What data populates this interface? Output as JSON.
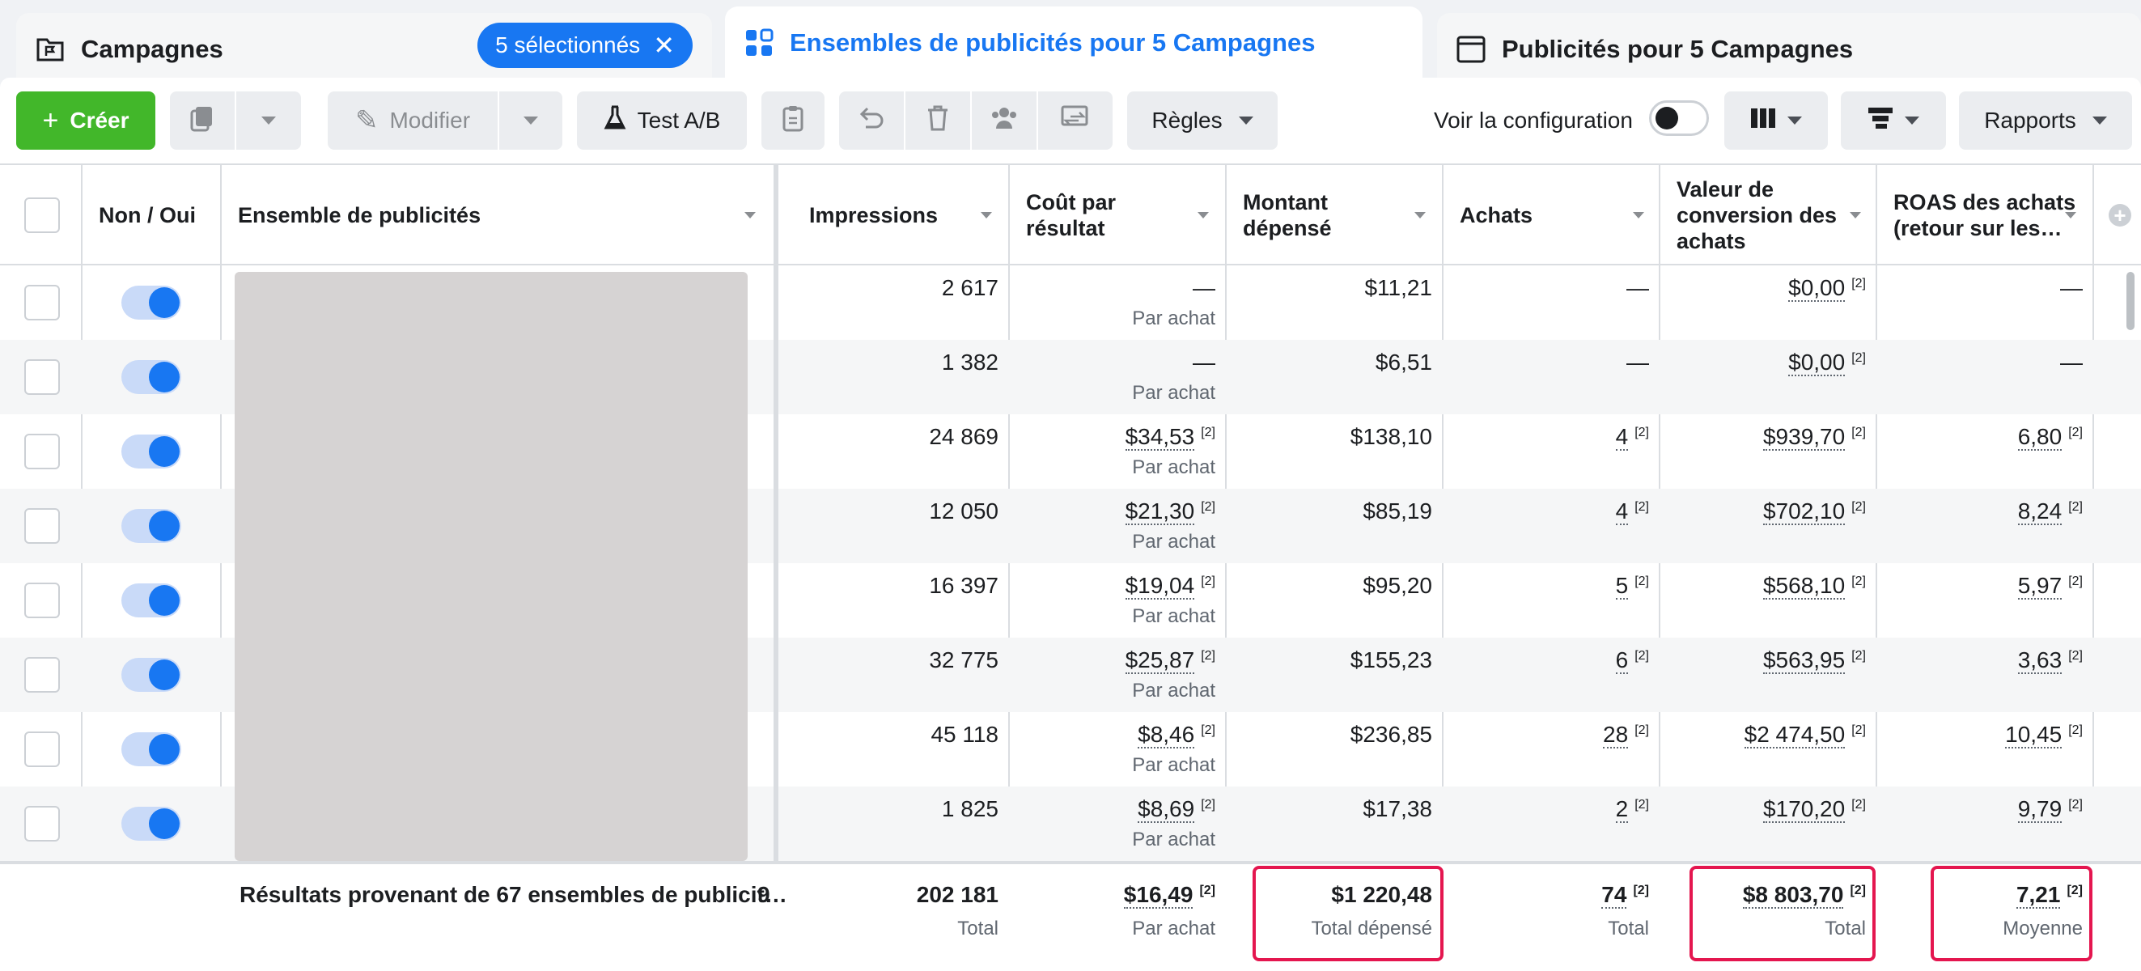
{
  "tabs": {
    "campaigns": {
      "label": "Campagnes",
      "chip": "5 sélectionnés"
    },
    "adsets": {
      "label": "Ensembles de publicités pour 5 Campagnes"
    },
    "ads": {
      "label": "Publicités pour 5 Campagnes"
    }
  },
  "toolbar": {
    "create": "Créer",
    "edit": "Modifier",
    "abtest": "Test A/B",
    "rules": "Règles",
    "view_setup": "Voir la configuration",
    "reports": "Rapports"
  },
  "columns": {
    "onoff": "Non / Oui",
    "adset": "Ensemble de publicités",
    "impressions": "Impressions",
    "cpr": "Coût par résultat",
    "spent": "Montant dépensé",
    "purchases": "Achats",
    "conv_value": "Valeur de conversion des achats",
    "roas": "ROAS des achats (retour sur les…"
  },
  "sub_labels": {
    "per_purchase": "Par achat",
    "total": "Total",
    "total_spent": "Total dépensé",
    "average": "Moyenne",
    "ref": "[2]"
  },
  "rows": [
    {
      "impressions": "2 617",
      "cpr": "—",
      "spent": "$11,21",
      "purchases": "—",
      "conv_value": "$0,00",
      "roas": "—"
    },
    {
      "impressions": "1 382",
      "cpr": "—",
      "spent": "$6,51",
      "purchases": "—",
      "conv_value": "$0,00",
      "roas": "—"
    },
    {
      "impressions": "24 869",
      "cpr": "$34,53",
      "spent": "$138,10",
      "purchases": "4",
      "conv_value": "$939,70",
      "roas": "6,80"
    },
    {
      "impressions": "12 050",
      "cpr": "$21,30",
      "spent": "$85,19",
      "purchases": "4",
      "conv_value": "$702,10",
      "roas": "8,24"
    },
    {
      "impressions": "16 397",
      "cpr": "$19,04",
      "spent": "$95,20",
      "purchases": "5",
      "conv_value": "$568,10",
      "roas": "5,97"
    },
    {
      "impressions": "32 775",
      "cpr": "$25,87",
      "spent": "$155,23",
      "purchases": "6",
      "conv_value": "$563,95",
      "roas": "3,63"
    },
    {
      "impressions": "45 118",
      "cpr": "$8,46",
      "spent": "$236,85",
      "purchases": "28",
      "conv_value": "$2 474,50",
      "roas": "10,45"
    },
    {
      "impressions": "1 825",
      "cpr": "$8,69",
      "spent": "$17,38",
      "purchases": "2",
      "conv_value": "$170,20",
      "roas": "9,79"
    }
  ],
  "footer": {
    "label": "Résultats provenant de 67 ensembles de publicit…",
    "clip": "9",
    "impressions": "202 181",
    "cpr": "$16,49",
    "spent": "$1 220,48",
    "purchases": "74",
    "conv_value": "$8 803,70",
    "roas": "7,21"
  },
  "colors": {
    "accent": "#1877f2",
    "create": "#42b72a",
    "highlight": "#e4164f"
  }
}
